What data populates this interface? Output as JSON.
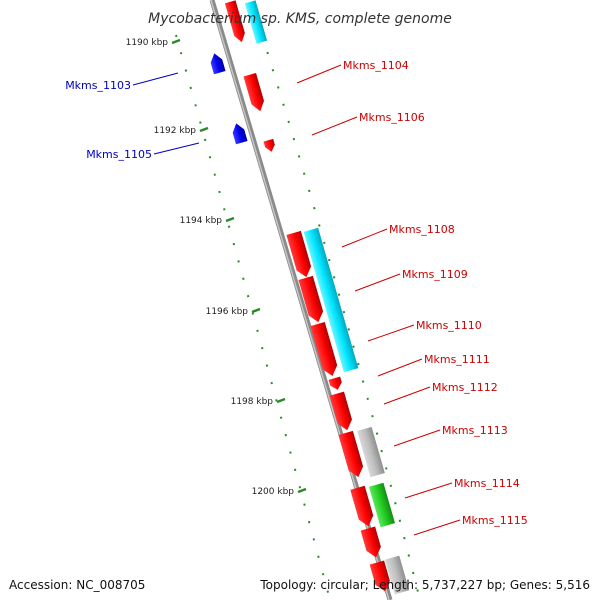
{
  "title": "Mycobacterium sp. KMS, complete genome",
  "footer": {
    "accession": "Accession: NC_008705",
    "summary": "Topology: circular; Length: 5,737,227 bp; Genes: 5,516"
  },
  "colors": {
    "backbone": "#8a8a8a",
    "tick": "#2a8a2a",
    "forward_label": "#cc0000",
    "reverse_label": "#0000bb",
    "cds": "#ff1a1a",
    "rna": "#00e5ff",
    "misc": "#bdbdbd",
    "other": "#33cc33",
    "reverse": "#0000ff"
  },
  "ticks": [
    {
      "label": "1190 kbp",
      "kbp": 1190
    },
    {
      "label": "1192 kbp",
      "kbp": 1192
    },
    {
      "label": "1194 kbp",
      "kbp": 1194
    },
    {
      "label": "1196 kbp",
      "kbp": 1196
    },
    {
      "label": "1198 kbp",
      "kbp": 1198
    },
    {
      "label": "1200 kbp",
      "kbp": 1200
    }
  ],
  "labels_forward": [
    "Mkms_1104",
    "Mkms_1106",
    "Mkms_1108",
    "Mkms_1109",
    "Mkms_1110",
    "Mkms_1111",
    "Mkms_1112",
    "Mkms_1113",
    "Mkms_1114",
    "Mkms_1115"
  ],
  "labels_reverse": [
    "Mkms_1103",
    "Mkms_1105"
  ]
}
